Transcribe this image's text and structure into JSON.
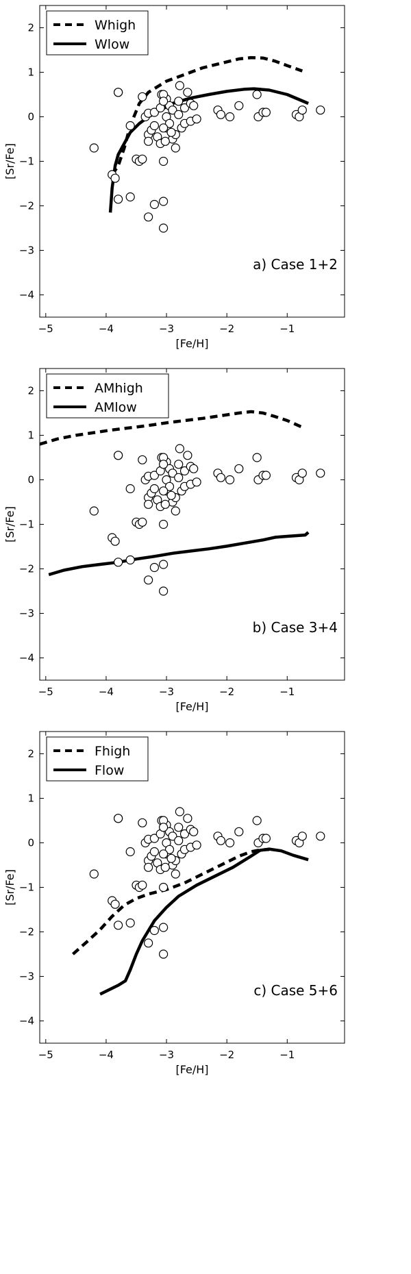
{
  "figure": {
    "description_free": true
  },
  "chart_data": [
    {
      "type": "line+scatter",
      "panel_id": "a",
      "annotation": "a) Case 1+2",
      "xlabel": "[Fe/H]",
      "ylabel": "[Sr/Fe]",
      "xlim": [
        -5.1,
        -0.05
      ],
      "ylim": [
        -4.5,
        2.5
      ],
      "xticks": [
        -5,
        -4,
        -3,
        -2,
        -1
      ],
      "xticklabels": [
        "−5",
        "−4",
        "−3",
        "−2",
        "−1"
      ],
      "yticks": [
        2,
        1,
        0,
        -1,
        -2,
        -3,
        -4
      ],
      "yticklabels": [
        "2",
        "1",
        "0",
        "−1",
        "−2",
        "−3",
        "−4"
      ],
      "legend_loc": "upper-left",
      "series": [
        {
          "name": "Whigh",
          "style": "dashed",
          "x": [
            -3.9,
            -3.8,
            -3.7,
            -3.6,
            -3.45,
            -3.3,
            -3.0,
            -2.7,
            -2.4,
            -2.1,
            -1.8,
            -1.6,
            -1.4,
            -1.2,
            -1.0,
            -0.75
          ],
          "y": [
            -1.3,
            -1.1,
            -0.7,
            -0.2,
            0.3,
            0.55,
            0.8,
            0.95,
            1.1,
            1.2,
            1.3,
            1.33,
            1.32,
            1.25,
            1.15,
            1.03
          ]
        },
        {
          "name": "Wlow",
          "style": "solid",
          "x": [
            -3.93,
            -3.9,
            -3.85,
            -3.8,
            -3.7,
            -3.6,
            -3.45,
            -3.3,
            -3.1,
            -2.9,
            -2.6,
            -2.3,
            -2.0,
            -1.7,
            -1.55,
            -1.3,
            -1.0,
            -0.65
          ],
          "y": [
            -2.15,
            -1.6,
            -1.1,
            -0.85,
            -0.6,
            -0.35,
            -0.15,
            0.0,
            0.15,
            0.3,
            0.42,
            0.5,
            0.57,
            0.62,
            0.63,
            0.6,
            0.5,
            0.3
          ]
        }
      ],
      "points_name": "observed stars"
    },
    {
      "type": "line+scatter",
      "panel_id": "b",
      "annotation": "b) Case 3+4",
      "xlabel": "[Fe/H]",
      "ylabel": "[Sr/Fe]",
      "xlim": [
        -5.1,
        -0.05
      ],
      "ylim": [
        -4.5,
        2.5
      ],
      "xticks": [
        -5,
        -4,
        -3,
        -2,
        -1
      ],
      "xticklabels": [
        "−5",
        "−4",
        "−3",
        "−2",
        "−1"
      ],
      "yticks": [
        2,
        1,
        0,
        -1,
        -2,
        -3,
        -4
      ],
      "yticklabels": [
        "2",
        "1",
        "0",
        "−1",
        "−2",
        "−3",
        "−4"
      ],
      "legend_loc": "upper-left",
      "series": [
        {
          "name": "AMhigh",
          "style": "dashed",
          "x": [
            -5.1,
            -4.8,
            -4.5,
            -4.2,
            -3.9,
            -3.6,
            -3.3,
            -3.0,
            -2.7,
            -2.4,
            -2.1,
            -1.8,
            -1.6,
            -1.4,
            -1.2,
            -1.0,
            -0.75
          ],
          "y": [
            0.8,
            0.92,
            1.0,
            1.06,
            1.12,
            1.17,
            1.22,
            1.28,
            1.33,
            1.38,
            1.44,
            1.5,
            1.53,
            1.5,
            1.42,
            1.33,
            1.18
          ]
        },
        {
          "name": "AMlow",
          "style": "solid",
          "x": [
            -4.95,
            -4.7,
            -4.4,
            -4.1,
            -3.8,
            -3.5,
            -3.2,
            -2.9,
            -2.6,
            -2.3,
            -2.0,
            -1.7,
            -1.4,
            -1.2,
            -1.0,
            -0.8,
            -0.7,
            -0.65
          ],
          "y": [
            -2.13,
            -2.03,
            -1.95,
            -1.9,
            -1.85,
            -1.78,
            -1.72,
            -1.65,
            -1.6,
            -1.55,
            -1.49,
            -1.42,
            -1.35,
            -1.29,
            -1.27,
            -1.25,
            -1.24,
            -1.18
          ]
        }
      ],
      "points_name": "observed stars"
    },
    {
      "type": "line+scatter",
      "panel_id": "c",
      "annotation": "c) Case 5+6",
      "xlabel": "[Fe/H]",
      "ylabel": "[Sr/Fe]",
      "xlim": [
        -5.1,
        -0.05
      ],
      "ylim": [
        -4.5,
        2.5
      ],
      "xticks": [
        -5,
        -4,
        -3,
        -2,
        -1
      ],
      "xticklabels": [
        "−5",
        "−4",
        "−3",
        "−2",
        "−1"
      ],
      "yticks": [
        2,
        1,
        0,
        -1,
        -2,
        -3,
        -4
      ],
      "yticklabels": [
        "2",
        "1",
        "0",
        "−1",
        "−2",
        "−3",
        "−4"
      ],
      "legend_loc": "upper-left",
      "series": [
        {
          "name": "Fhigh",
          "style": "dashed",
          "x": [
            -4.55,
            -4.3,
            -4.1,
            -3.9,
            -3.7,
            -3.5,
            -3.3,
            -3.0,
            -2.7,
            -2.4,
            -2.1,
            -1.8,
            -1.6,
            -1.45,
            -1.3
          ],
          "y": [
            -2.5,
            -2.2,
            -1.95,
            -1.65,
            -1.4,
            -1.25,
            -1.15,
            -1.05,
            -0.9,
            -0.7,
            -0.5,
            -0.3,
            -0.2,
            -0.16,
            -0.15
          ]
        },
        {
          "name": "Flow",
          "style": "solid",
          "x": [
            -4.1,
            -3.95,
            -3.8,
            -3.68,
            -3.6,
            -3.5,
            -3.4,
            -3.2,
            -3.0,
            -2.8,
            -2.5,
            -2.2,
            -1.9,
            -1.6,
            -1.45,
            -1.3,
            -1.1,
            -0.9,
            -0.65
          ],
          "y": [
            -3.4,
            -3.3,
            -3.2,
            -3.1,
            -2.85,
            -2.5,
            -2.2,
            -1.75,
            -1.45,
            -1.2,
            -0.95,
            -0.75,
            -0.55,
            -0.3,
            -0.17,
            -0.14,
            -0.18,
            -0.28,
            -0.38
          ]
        }
      ],
      "points_name": "observed stars"
    }
  ],
  "observed_stars": {
    "x": [
      -4.2,
      -3.8,
      -3.9,
      -3.85,
      -3.8,
      -3.6,
      -3.8,
      -3.6,
      -3.5,
      -3.45,
      -3.4,
      -3.35,
      -3.3,
      -3.3,
      -3.3,
      -3.25,
      -3.2,
      -3.2,
      -3.15,
      -3.1,
      -3.1,
      -3.08,
      -3.05,
      -3.05,
      -3.05,
      -3.0,
      -3.0,
      -3.0,
      -2.95,
      -2.95,
      -2.9,
      -2.9,
      -2.85,
      -2.85,
      -2.8,
      -2.8,
      -2.78,
      -2.75,
      -2.7,
      -2.7,
      -2.65,
      -2.6,
      -2.6,
      -2.55,
      -2.5,
      -3.4,
      -3.05,
      -3.2,
      -3.05,
      -3.3,
      -3.05,
      -2.15,
      -2.1,
      -1.95,
      -1.8,
      -1.5,
      -1.48,
      -1.4,
      -1.35,
      -0.85,
      -0.8,
      -0.75,
      -0.45,
      -3.02,
      -2.92
    ],
    "y": [
      -0.7,
      0.55,
      -1.3,
      -1.38,
      -1.85,
      -1.8,
      0.55,
      -0.2,
      -0.95,
      -1.0,
      0.45,
      0.0,
      -0.4,
      -0.55,
      0.08,
      -0.3,
      0.1,
      -0.2,
      -0.45,
      0.2,
      -0.6,
      0.5,
      -1.0,
      -1.9,
      -2.5,
      0.0,
      -0.25,
      0.4,
      0.25,
      -0.15,
      -0.5,
      0.15,
      -0.7,
      -0.4,
      0.35,
      0.05,
      0.7,
      -0.25,
      -0.15,
      0.2,
      0.55,
      0.3,
      -0.1,
      0.25,
      -0.05,
      -0.95,
      0.5,
      -1.97,
      0.35,
      -2.25,
      -0.25,
      0.15,
      0.05,
      0.0,
      0.25,
      0.5,
      0.0,
      0.1,
      0.1,
      0.05,
      0.0,
      0.15,
      0.15,
      -0.55,
      -0.35
    ]
  }
}
